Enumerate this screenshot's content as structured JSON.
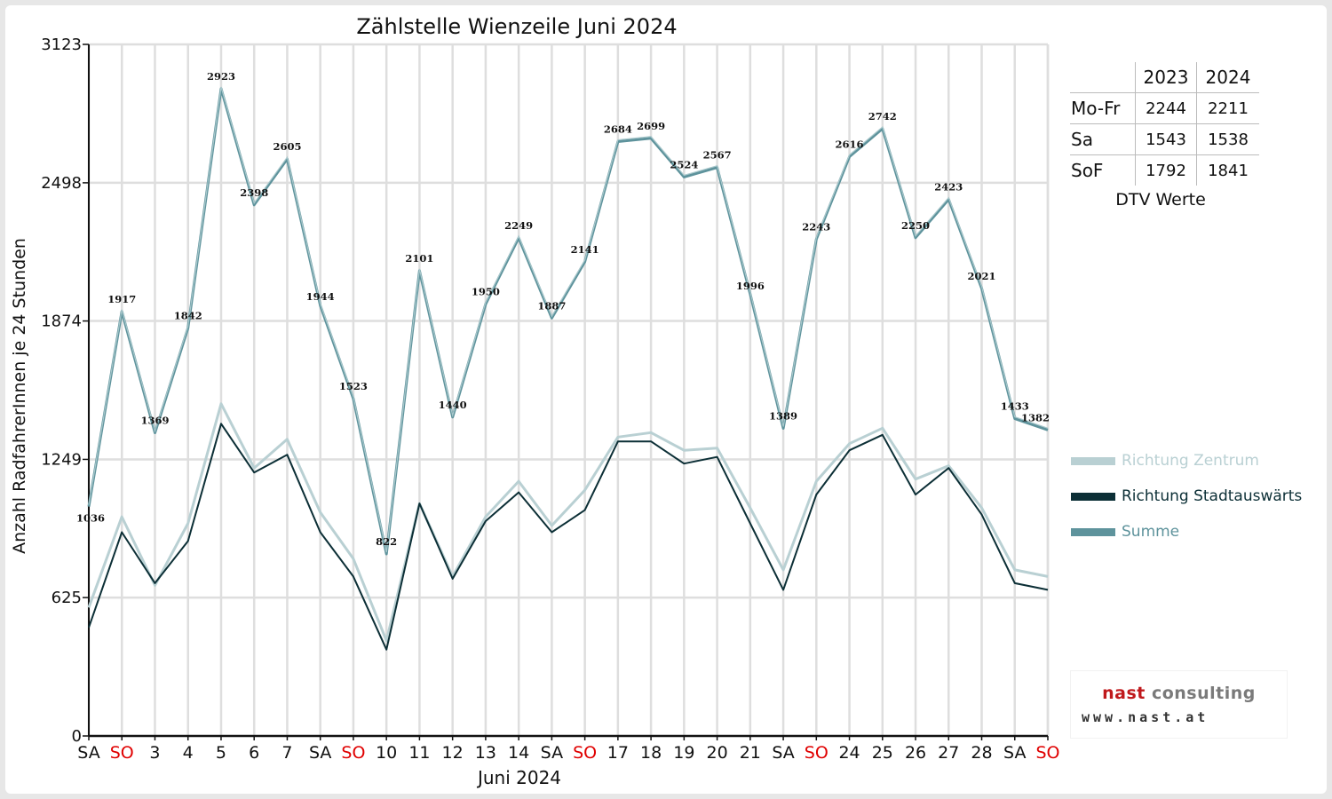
{
  "chart_data": {
    "type": "line",
    "title": "Zählstelle Wienzeile Juni 2024",
    "xlabel": "Juni 2024",
    "ylabel": "Anzahl RadfahrerInnen je 24 Stunden",
    "ylim": [
      0,
      3123
    ],
    "yticks": [
      0,
      625,
      1249,
      1874,
      2498,
      3123
    ],
    "categories": [
      "SA",
      "SO",
      "3",
      "4",
      "5",
      "6",
      "7",
      "SA",
      "SO",
      "10",
      "11",
      "12",
      "13",
      "14",
      "SA",
      "SO",
      "17",
      "18",
      "19",
      "20",
      "21",
      "SA",
      "SO",
      "24",
      "25",
      "26",
      "27",
      "28",
      "SA",
      "SO"
    ],
    "weekend_categories": [
      1,
      8,
      15,
      22,
      29
    ],
    "grid": true,
    "legend_position": "right",
    "series": [
      {
        "name": "Richtung Zentrum",
        "color": "#b9d0d3",
        "values": [
          580,
          990,
          680,
          960,
          1500,
          1210,
          1340,
          1010,
          800,
          430,
          1050,
          720,
          990,
          1150,
          950,
          1110,
          1350,
          1370,
          1290,
          1300,
          1030,
          750,
          1150,
          1320,
          1390,
          1160,
          1220,
          1030,
          750,
          720
        ]
      },
      {
        "name": "Richtung Stadtauswärts",
        "color": "#0c2f36",
        "values": [
          490,
          920,
          690,
          880,
          1410,
          1190,
          1270,
          920,
          720,
          390,
          1050,
          710,
          970,
          1100,
          920,
          1020,
          1330,
          1330,
          1230,
          1260,
          960,
          660,
          1090,
          1290,
          1360,
          1090,
          1210,
          1000,
          690,
          660
        ]
      },
      {
        "name": "Summe",
        "color": "#5e939c",
        "values": [
          1036,
          1917,
          1369,
          1842,
          2923,
          2398,
          2605,
          1944,
          1523,
          822,
          2101,
          1440,
          1950,
          2249,
          1887,
          2141,
          2684,
          2699,
          2524,
          2567,
          1996,
          1389,
          2243,
          2616,
          2742,
          2250,
          2423,
          2021,
          1433,
          1382
        ]
      }
    ],
    "data_labels": [
      "1036",
      "1917",
      "1369",
      "1842",
      "2923",
      "2398",
      "2605",
      "1944",
      "1523",
      "822",
      "2101",
      "1440",
      "1950",
      "2249",
      "1887",
      "2141",
      "2684",
      "2699",
      "2524",
      "2567",
      "1996",
      "1389",
      "2243",
      "2616",
      "2742",
      "2250",
      "2423",
      "2021",
      "1433",
      "1382"
    ]
  },
  "dtv_table": {
    "columns": [
      "2023",
      "2024"
    ],
    "rows": [
      {
        "label": "Mo-Fr",
        "v2023": "2244",
        "v2024": "2211"
      },
      {
        "label": "Sa",
        "v2023": "1543",
        "v2024": "1538"
      },
      {
        "label": "SoF",
        "v2023": "1792",
        "v2024": "1841"
      }
    ],
    "caption": "DTV Werte"
  },
  "logo": {
    "name_red": "nast",
    "name_gray": "consulting",
    "url": "www.nast.at"
  }
}
